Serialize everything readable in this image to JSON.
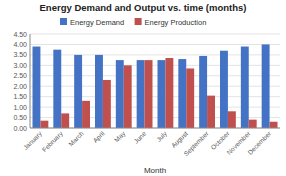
{
  "chart_data": {
    "type": "bar",
    "title": "Energy Demand and Output vs. time (months)",
    "xlabel": "Month",
    "categories": [
      "January",
      "February",
      "March",
      "April",
      "May",
      "June",
      "July",
      "August",
      "September",
      "October",
      "November",
      "December"
    ],
    "series": [
      {
        "name": "Energy Demand",
        "color": "#4472C4",
        "values": [
          3.9,
          3.75,
          3.5,
          3.5,
          3.25,
          3.25,
          3.25,
          3.3,
          3.45,
          3.7,
          3.9,
          4.0
        ]
      },
      {
        "name": "Energy Production",
        "color": "#C0504D",
        "values": [
          0.35,
          0.7,
          1.3,
          2.3,
          3.0,
          3.25,
          3.35,
          2.85,
          1.55,
          0.8,
          0.4,
          0.3
        ]
      }
    ],
    "ylim": [
      0,
      4.5
    ],
    "yticks": [
      {
        "value": 0.0,
        "label": "0.00"
      },
      {
        "value": 0.5,
        "label": "0.50"
      },
      {
        "value": 1.0,
        "label": "1.00"
      },
      {
        "value": 1.5,
        "label": "1.50"
      },
      {
        "value": 2.0,
        "label": "2.00"
      },
      {
        "value": 2.5,
        "label": "2.50"
      },
      {
        "value": 3.0,
        "label": "3.00"
      },
      {
        "value": 3.5,
        "label": "3.50"
      },
      {
        "value": 4.0,
        "label": "4.00"
      },
      {
        "value": 4.5,
        "label": "4.50"
      }
    ],
    "grid": true,
    "legend": "top"
  }
}
